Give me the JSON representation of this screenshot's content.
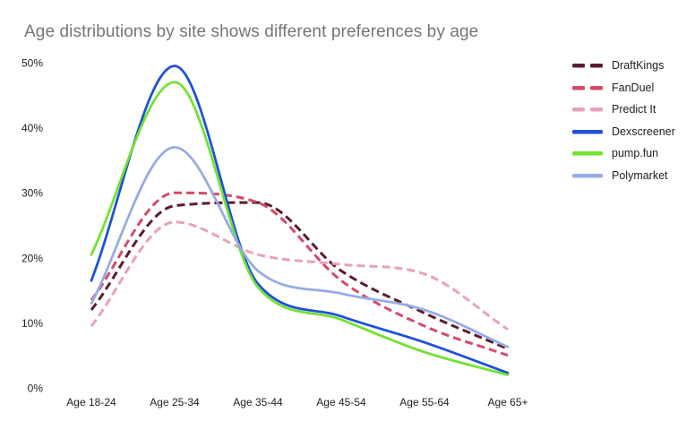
{
  "chart_data": {
    "type": "line",
    "title": "Age distributions by site shows different preferences by age",
    "title_color": "#757575",
    "axis_text_color": "#1f1f1f",
    "background": "#ffffff",
    "grid": false,
    "legend_position": "right",
    "xlabel": "",
    "ylabel": "",
    "ylim": [
      0,
      50
    ],
    "categories": [
      "Age 18-24",
      "Age 25-34",
      "Age 35-44",
      "Age 45-54",
      "Age 55-64",
      "Age 65+"
    ],
    "y_ticks": [
      {
        "value": 0,
        "label": "0%"
      },
      {
        "value": 10,
        "label": "10%"
      },
      {
        "value": 20,
        "label": "20%"
      },
      {
        "value": 30,
        "label": "30%"
      },
      {
        "value": 40,
        "label": "40%"
      },
      {
        "value": 50,
        "label": "50%"
      }
    ],
    "series": [
      {
        "name": "DraftKings",
        "line_style": "dashed",
        "color": "#5c1b2e",
        "values": [
          12,
          28,
          28.5,
          18,
          11.5,
          6
        ]
      },
      {
        "name": "FanDuel",
        "line_style": "dashed",
        "color": "#d6496a",
        "values": [
          13.5,
          30,
          28.5,
          16.5,
          9.5,
          5
        ]
      },
      {
        "name": "Predict It",
        "line_style": "dashed",
        "color": "#e9a2b4",
        "values": [
          9.5,
          25.5,
          20.5,
          19,
          17.5,
          9
        ]
      },
      {
        "name": "Dexscreener",
        "line_style": "solid",
        "color": "#1e50d9",
        "values": [
          16.5,
          49.5,
          16,
          11,
          7,
          2.3
        ]
      },
      {
        "name": "pump.fun",
        "line_style": "solid",
        "color": "#70e22f",
        "values": [
          20.5,
          47,
          15.5,
          10.5,
          5.5,
          2
        ]
      },
      {
        "name": "Polymarket",
        "line_style": "solid",
        "color": "#96abe5",
        "values": [
          13,
          37,
          18,
          14.5,
          12,
          6.3
        ]
      }
    ]
  }
}
